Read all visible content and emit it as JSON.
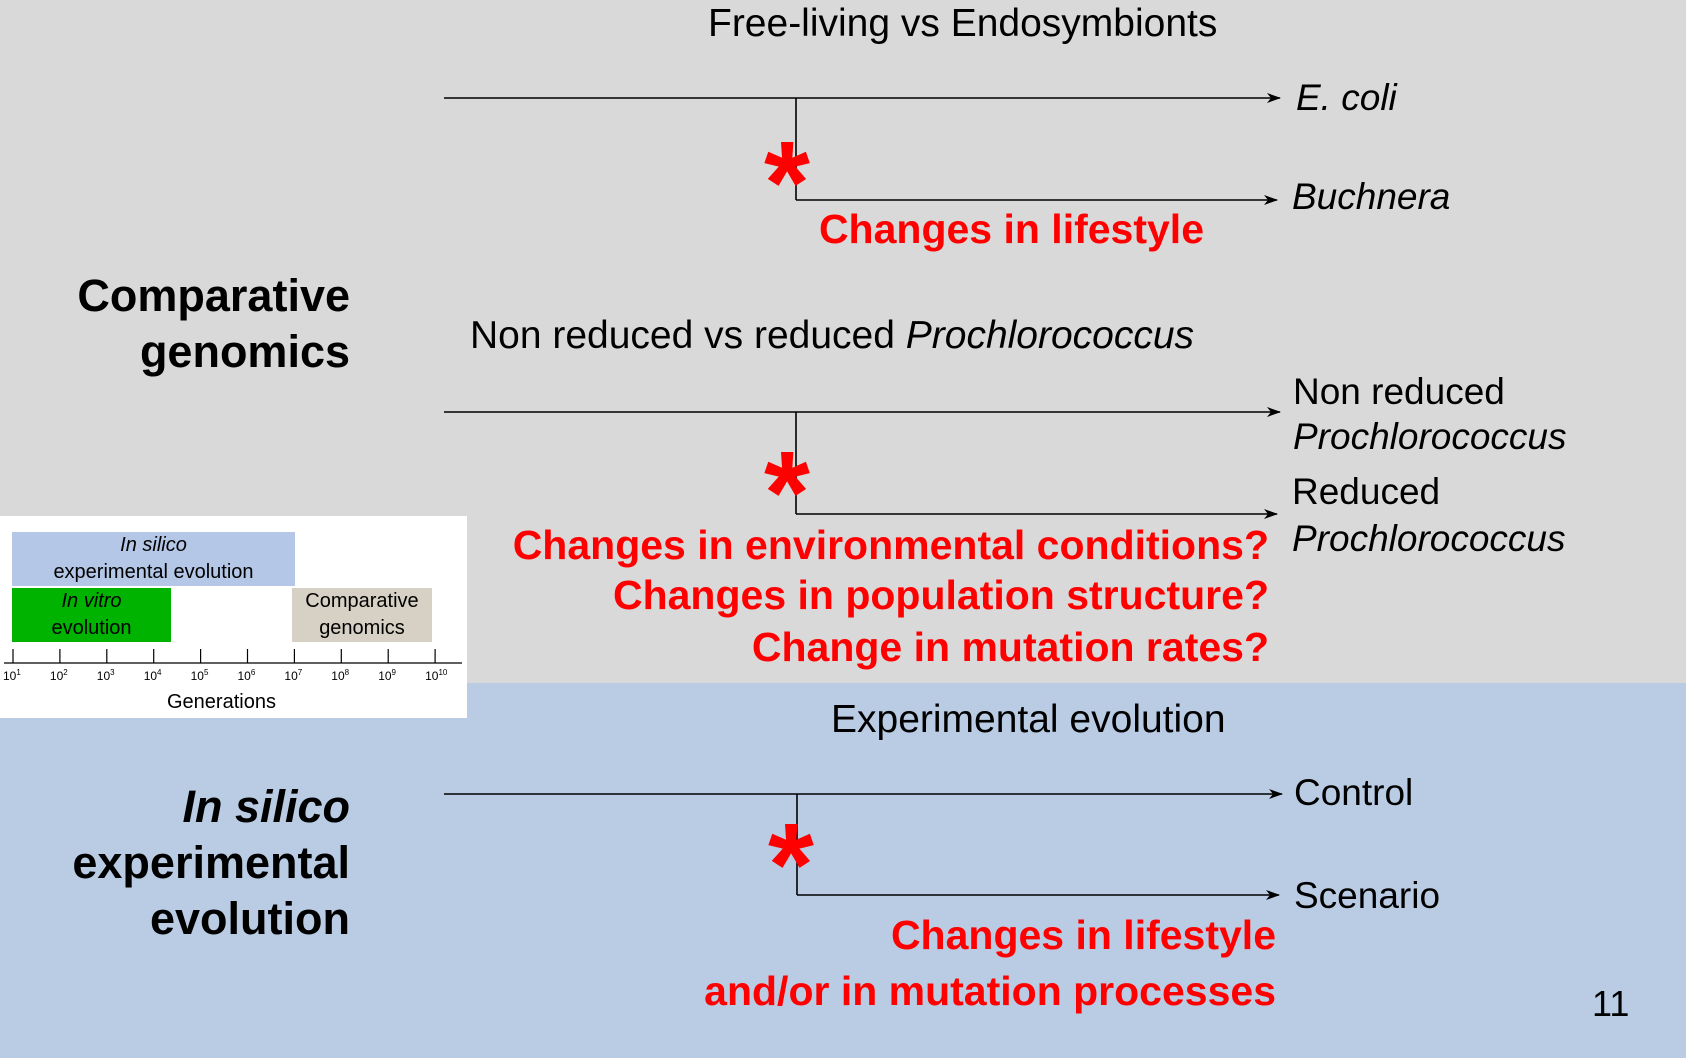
{
  "section_comparative": {
    "label_line1": "Comparative",
    "label_line2": "genomics",
    "tree1": {
      "title": "Free-living vs Endosymbionts",
      "leaf_top": "E. coli",
      "leaf_bottom": "Buchnera",
      "change": "Changes in lifestyle"
    },
    "tree2": {
      "title_plain": "Non reduced vs reduced ",
      "title_italic": "Prochlorococcus",
      "leaf_top_line1": "Non reduced",
      "leaf_top_line2": "Prochlorococcus",
      "leaf_bottom_line1": "Reduced",
      "leaf_bottom_line2": "Prochlorococcus",
      "change_1": "Changes in environmental conditions?",
      "change_2": "Changes in population structure?",
      "change_3": "Change in mutation rates?"
    }
  },
  "section_insilico": {
    "label_line1": "In silico",
    "label_line2": "experimental",
    "label_line3": "evolution",
    "tree3": {
      "title": "Experimental evolution",
      "leaf_top": "Control",
      "leaf_bottom": "Scenario",
      "change_1": "Changes in lifestyle",
      "change_2": "and/or in mutation processes"
    }
  },
  "inset": {
    "insilico_line1": "In silico",
    "insilico_line2": "experimental evolution",
    "invitro_line1": "In vitro",
    "invitro_line2": "evolution",
    "comparative_line1": "Comparative",
    "comparative_line2": "genomics",
    "axis_label": "Generations",
    "ticks": [
      {
        "base": "10",
        "exp": "1"
      },
      {
        "base": "10",
        "exp": "2"
      },
      {
        "base": "10",
        "exp": "3"
      },
      {
        "base": "10",
        "exp": "4"
      },
      {
        "base": "10",
        "exp": "5"
      },
      {
        "base": "10",
        "exp": "6"
      },
      {
        "base": "10",
        "exp": "7"
      },
      {
        "base": "10",
        "exp": "8"
      },
      {
        "base": "10",
        "exp": "9"
      },
      {
        "base": "10",
        "exp": "10"
      }
    ],
    "colors": {
      "insilico": "#b4c7e7",
      "invitro": "#00b300",
      "comparative": "#d6d1c4"
    }
  },
  "star_symbol": "*",
  "slide_number": "11",
  "colors": {
    "top_background": "#d9d9d9",
    "bottom_background": "#b9cce4",
    "highlight": "#ff0000"
  }
}
